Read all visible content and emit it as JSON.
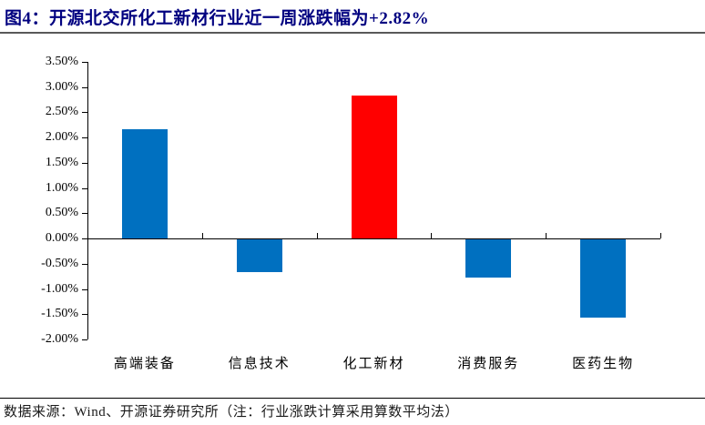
{
  "title": "图4：开源北交所化工新材行业近一周涨跌幅为+2.82%",
  "footer": {
    "source": "数据来源：Wind、开源证券研究所（注：行业涨跌计算采用算数平均法）"
  },
  "colors": {
    "title_text": "#000080",
    "bar_default": "#0070C0",
    "bar_highlight": "#FF0000",
    "axis": "#000000",
    "title_rule": "#595959"
  },
  "chart_data": {
    "type": "bar",
    "categories": [
      "高端装备",
      "信息技术",
      "化工新材",
      "消费服务",
      "医药生物"
    ],
    "values": [
      2.17,
      -0.65,
      2.82,
      -0.76,
      -1.55
    ],
    "bar_colors": [
      "#0070C0",
      "#0070C0",
      "#FF0000",
      "#0070C0",
      "#0070C0"
    ],
    "highlight_category": "化工新材",
    "title": "",
    "xlabel": "",
    "ylabel": "",
    "ylim": [
      -2.0,
      3.5
    ],
    "ytick_step": 0.5,
    "ytick_labels": [
      "3.50%",
      "3.00%",
      "2.50%",
      "2.00%",
      "1.50%",
      "1.00%",
      "0.50%",
      "0.00%",
      "-0.50%",
      "-1.00%",
      "-1.50%",
      "-2.00%"
    ],
    "grid": false,
    "legend_position": "none"
  }
}
